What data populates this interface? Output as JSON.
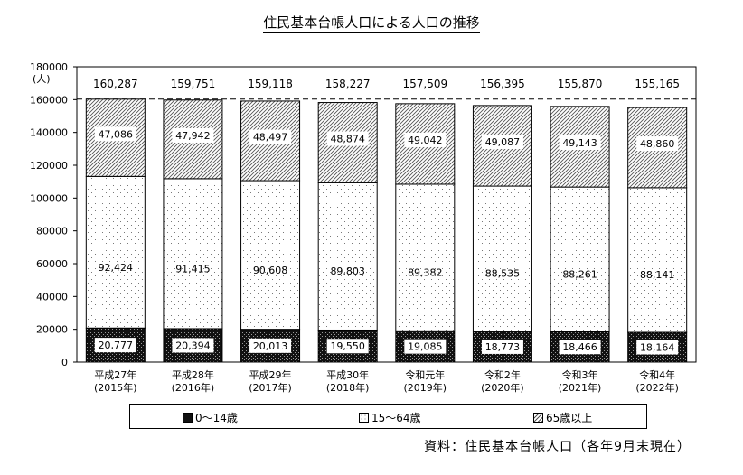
{
  "title": "住民基本台帳人口による人口の推移",
  "source": "資料：住民基本台帳人口（各年9月末現在）",
  "legend": [
    {
      "key": "young",
      "label": "0～14歳"
    },
    {
      "key": "working",
      "label": "15～64歳"
    },
    {
      "key": "elderly",
      "label": "65歳以上"
    }
  ],
  "chart_data": {
    "type": "bar",
    "stacked": true,
    "unit_label": "(人)",
    "ylim": [
      0,
      180000
    ],
    "yticks": [
      0,
      20000,
      40000,
      60000,
      80000,
      100000,
      120000,
      140000,
      160000,
      180000
    ],
    "categories": [
      {
        "line1": "平成27年",
        "line2": "(2015年)"
      },
      {
        "line1": "平成28年",
        "line2": "(2016年)"
      },
      {
        "line1": "平成29年",
        "line2": "(2017年)"
      },
      {
        "line1": "平成30年",
        "line2": "(2018年)"
      },
      {
        "line1": "令和元年",
        "line2": "(2019年)"
      },
      {
        "line1": "令和2年",
        "line2": "(2020年)"
      },
      {
        "line1": "令和3年",
        "line2": "(2021年)"
      },
      {
        "line1": "令和4年",
        "line2": "(2022年)"
      }
    ],
    "series": [
      {
        "name": "0～14歳",
        "values": [
          20777,
          20394,
          20013,
          19550,
          19085,
          18773,
          18466,
          18164
        ],
        "labels": [
          "20,777",
          "20,394",
          "20,013",
          "19,550",
          "19,085",
          "18,773",
          "18,466",
          "18,164"
        ]
      },
      {
        "name": "15～64歳",
        "values": [
          92424,
          91415,
          90608,
          89803,
          89382,
          88535,
          88261,
          88141
        ],
        "labels": [
          "92,424",
          "91,415",
          "90,608",
          "89,803",
          "89,382",
          "88,535",
          "88,261",
          "88,141"
        ]
      },
      {
        "name": "65歳以上",
        "values": [
          47086,
          47942,
          48497,
          48874,
          49042,
          49087,
          49143,
          48860
        ],
        "labels": [
          "47,086",
          "47,942",
          "48,497",
          "48,874",
          "49,042",
          "49,087",
          "49,143",
          "48,860"
        ]
      }
    ],
    "totals": [
      160287,
      159751,
      159118,
      158227,
      157509,
      156395,
      155870,
      155165
    ],
    "total_labels": [
      "160,287",
      "159,751",
      "159,118",
      "158,227",
      "157,509",
      "156,395",
      "155,870",
      "155,165"
    ],
    "reference_line": 160287,
    "grid": false,
    "legend_position": "bottom"
  }
}
